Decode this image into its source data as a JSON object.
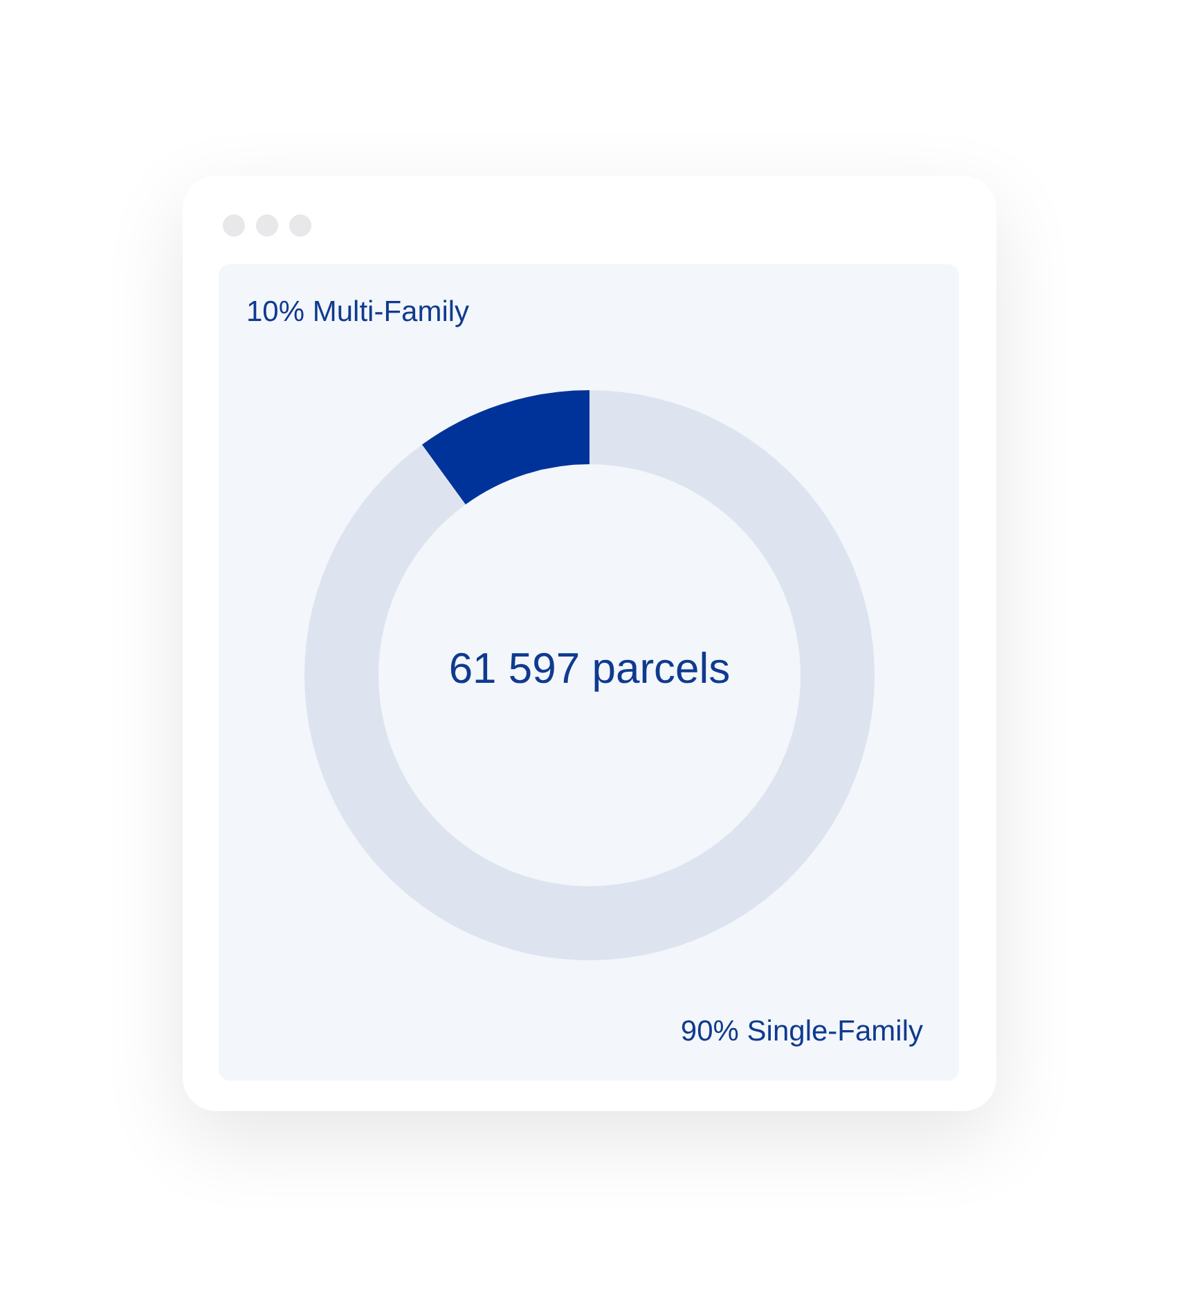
{
  "chart_data": {
    "type": "donut",
    "categories": [
      "Multi-Family",
      "Single-Family"
    ],
    "values": [
      10,
      90
    ],
    "colors": [
      "#003399",
      "#dde4f0"
    ],
    "value_labels": [
      "10%",
      "90%"
    ],
    "annotations": [
      "61 597 parcels"
    ],
    "legend": false
  }
}
